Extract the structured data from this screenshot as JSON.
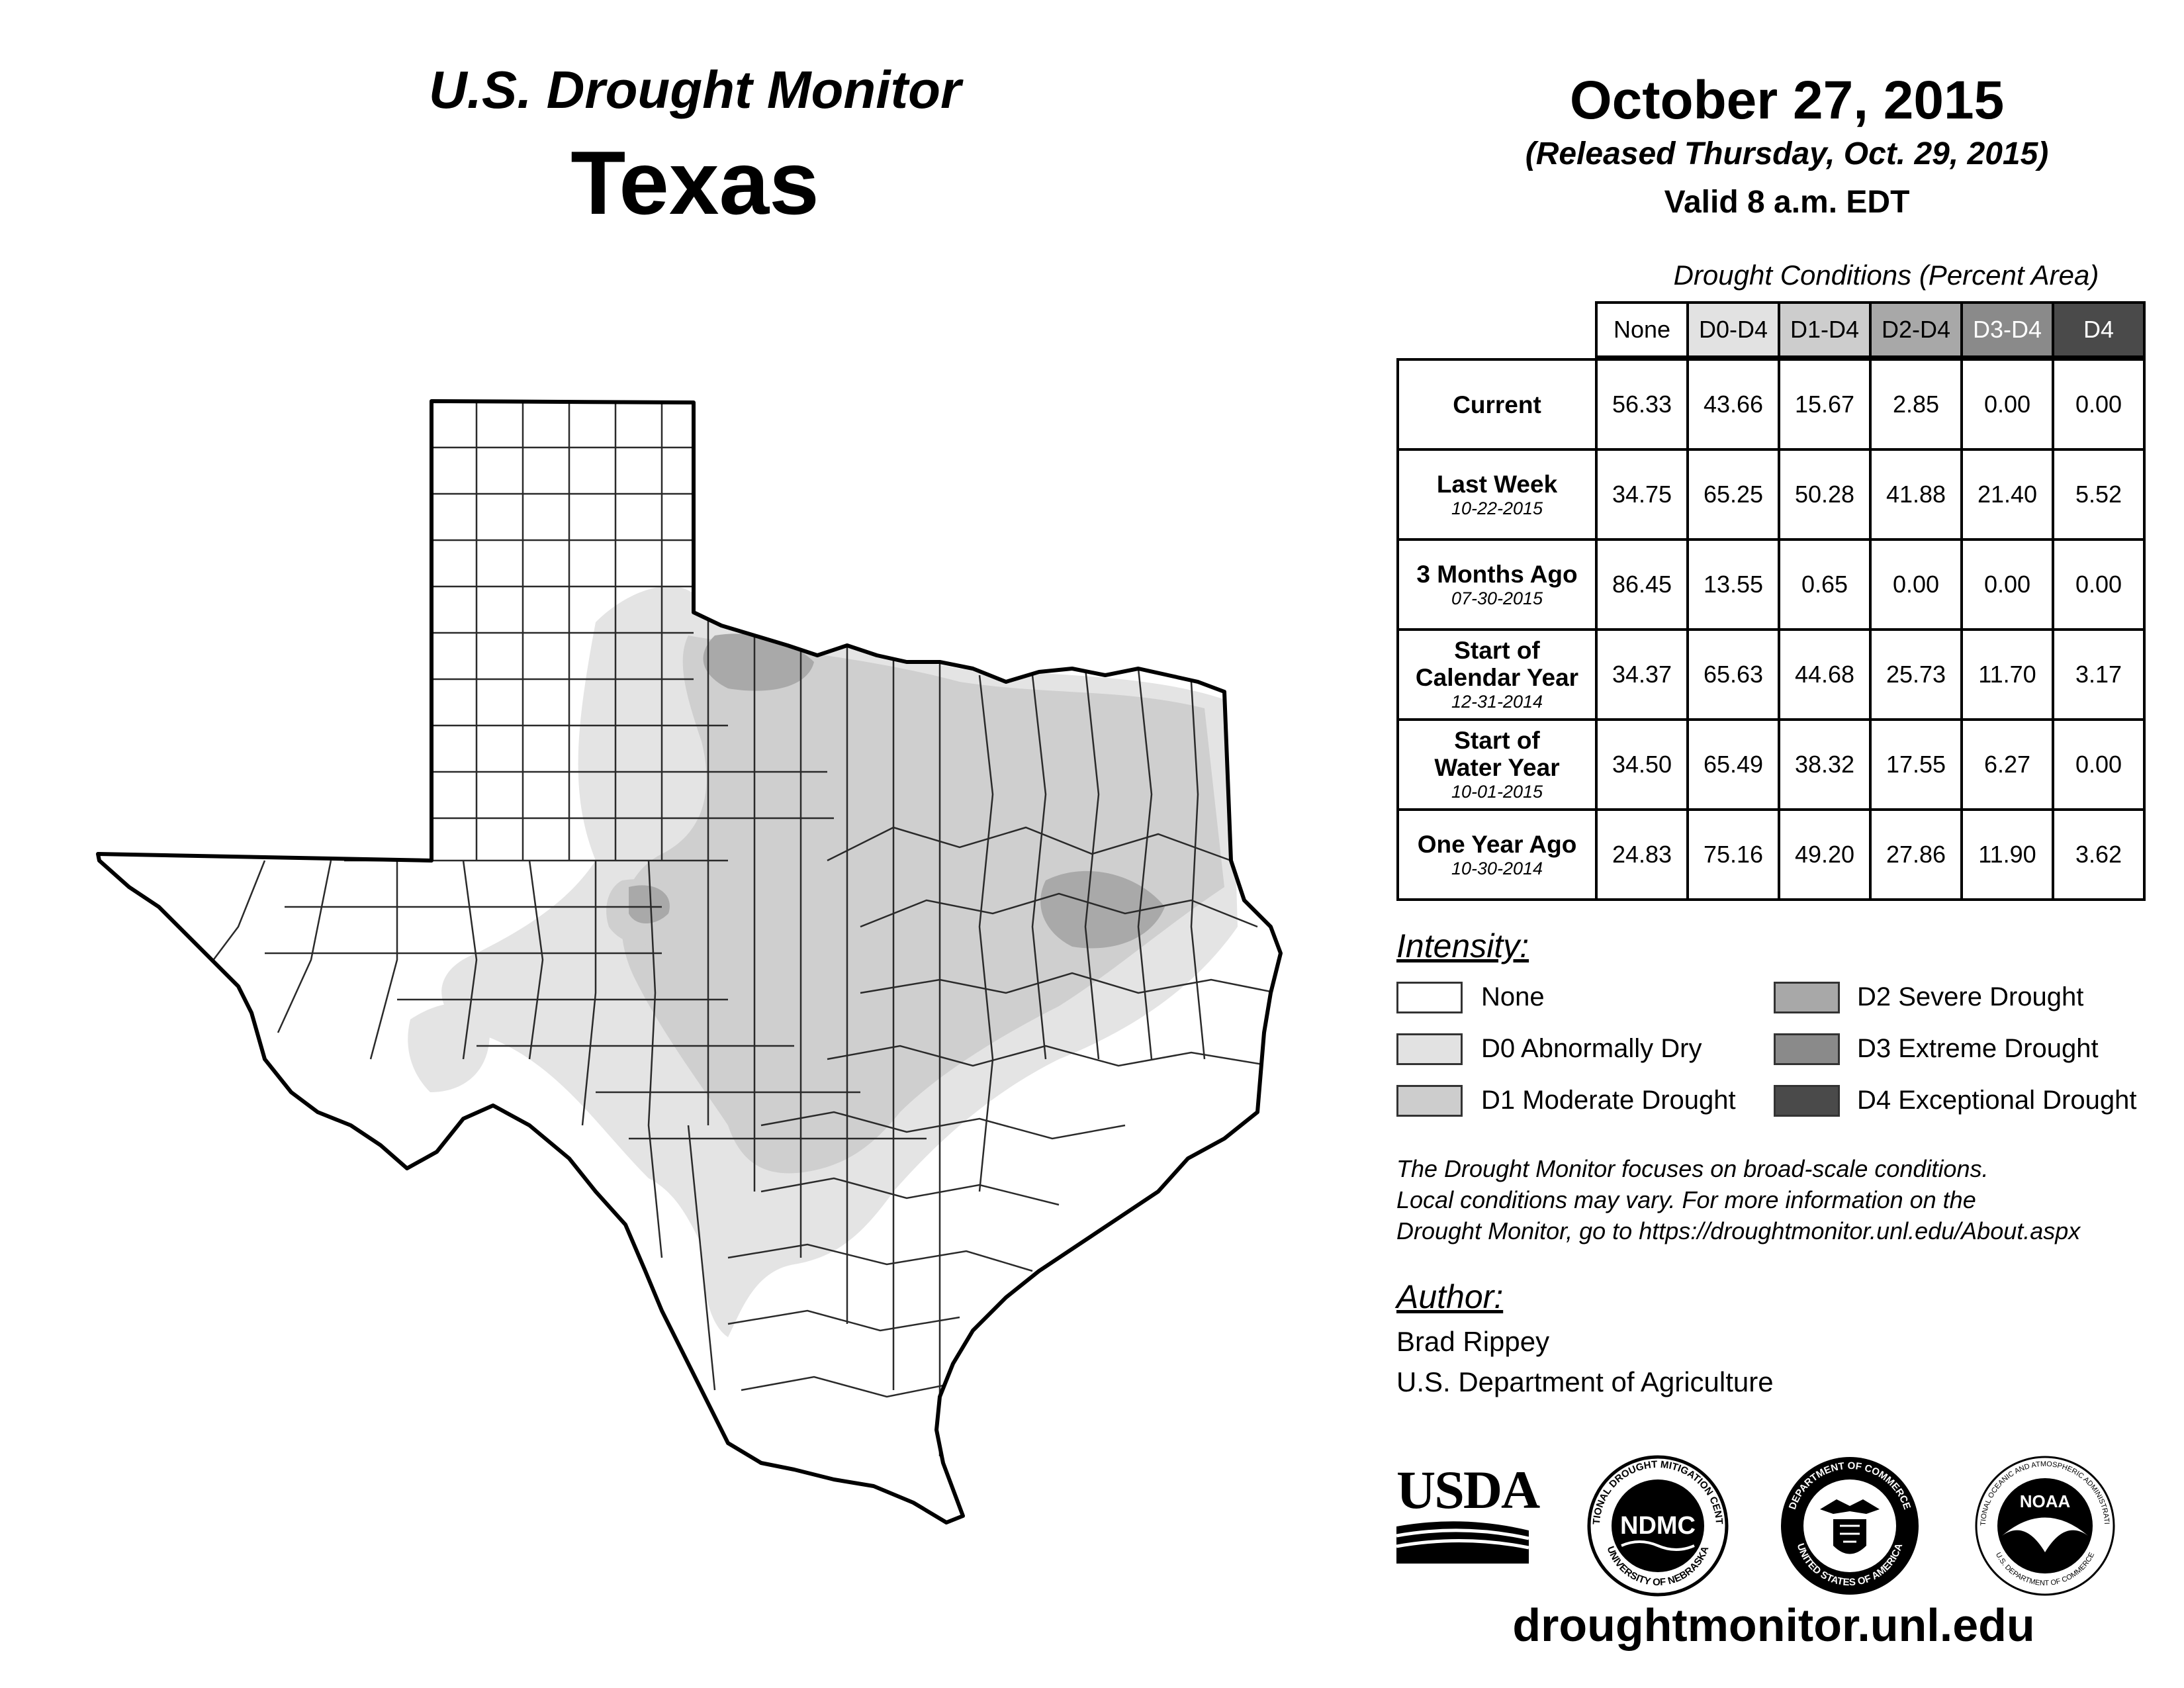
{
  "header": {
    "title": "U.S. Drought Monitor",
    "state": "Texas",
    "date": "October 27, 2015",
    "released": "(Released Thursday, Oct. 29, 2015)",
    "valid": "Valid 8 a.m. EDT"
  },
  "table": {
    "caption": "Drought Conditions (Percent Area)",
    "columns": [
      "None",
      "D0-D4",
      "D1-D4",
      "D2-D4",
      "D3-D4",
      "D4"
    ],
    "column_colors": [
      "#ffffff",
      "#e2e2e2",
      "#cdcdcd",
      "#a8a8a8",
      "#8a8a8a",
      "#4a4a4a"
    ],
    "rows": [
      {
        "label": "Current",
        "label2": "",
        "date": "",
        "values": [
          "56.33",
          "43.66",
          "15.67",
          "2.85",
          "0.00",
          "0.00"
        ]
      },
      {
        "label": "Last Week",
        "label2": "",
        "date": "10-22-2015",
        "values": [
          "34.75",
          "65.25",
          "50.28",
          "41.88",
          "21.40",
          "5.52"
        ]
      },
      {
        "label": "3 Months Ago",
        "label2": "",
        "date": "07-30-2015",
        "values": [
          "86.45",
          "13.55",
          "0.65",
          "0.00",
          "0.00",
          "0.00"
        ]
      },
      {
        "label": "Start of",
        "label2": "Calendar Year",
        "date": "12-31-2014",
        "values": [
          "34.37",
          "65.63",
          "44.68",
          "25.73",
          "11.70",
          "3.17"
        ]
      },
      {
        "label": "Start of",
        "label2": "Water Year",
        "date": "10-01-2015",
        "values": [
          "34.50",
          "65.49",
          "38.32",
          "17.55",
          "6.27",
          "0.00"
        ]
      },
      {
        "label": "One Year Ago",
        "label2": "",
        "date": "10-30-2014",
        "values": [
          "24.83",
          "75.16",
          "49.20",
          "27.86",
          "11.90",
          "3.62"
        ]
      }
    ]
  },
  "intensity": {
    "heading": "Intensity:",
    "items": [
      {
        "label": "None",
        "color": "#ffffff"
      },
      {
        "label": "D0 Abnormally Dry",
        "color": "#e2e2e2"
      },
      {
        "label": "D1 Moderate Drought",
        "color": "#cdcdcd"
      },
      {
        "label": "D2 Severe Drought",
        "color": "#a8a8a8"
      },
      {
        "label": "D3 Extreme Drought",
        "color": "#8a8a8a"
      },
      {
        "label": "D4 Exceptional Drought",
        "color": "#4a4a4a"
      }
    ]
  },
  "note": {
    "line1": "The Drought Monitor focuses on broad-scale conditions.",
    "line2": "Local conditions may vary. For more information on the",
    "line3": "Drought Monitor, go to https://droughtmonitor.unl.edu/About.aspx"
  },
  "author": {
    "heading": "Author:",
    "name": "Brad Rippey",
    "org": "U.S. Department of Agriculture"
  },
  "logos": {
    "usda": "USDA",
    "ndmc": "NDMC",
    "ndmc_top": "NATIONAL DROUGHT MITIGATION CENTER",
    "ndmc_bottom": "UNIVERSITY OF NEBRASKA",
    "doc_top": "DEPARTMENT OF COMMERCE",
    "doc_bottom": "UNITED STATES OF AMERICA",
    "noaa": "NOAA",
    "noaa_ring": "NATIONAL OCEANIC AND ATMOSPHERIC ADMINISTRATION",
    "noaa_bottom": "U.S. DEPARTMENT OF COMMERCE"
  },
  "footer": {
    "url": "droughtmonitor.unl.edu"
  }
}
